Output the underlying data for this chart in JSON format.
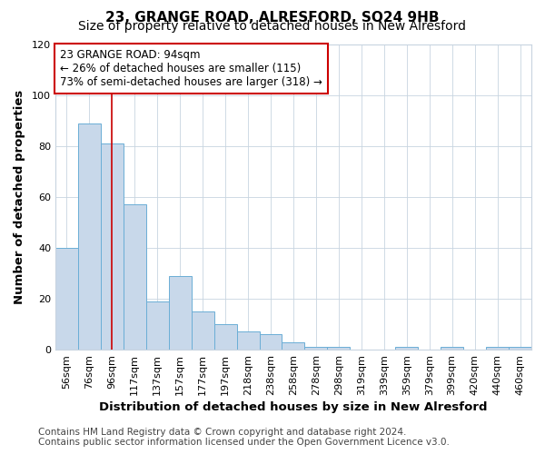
{
  "title": "23, GRANGE ROAD, ALRESFORD, SO24 9HB",
  "subtitle": "Size of property relative to detached houses in New Alresford",
  "xlabel": "Distribution of detached houses by size in New Alresford",
  "ylabel": "Number of detached properties",
  "bar_labels": [
    "56sqm",
    "76sqm",
    "96sqm",
    "117sqm",
    "137sqm",
    "157sqm",
    "177sqm",
    "197sqm",
    "218sqm",
    "238sqm",
    "258sqm",
    "278sqm",
    "298sqm",
    "319sqm",
    "339sqm",
    "359sqm",
    "379sqm",
    "399sqm",
    "420sqm",
    "440sqm",
    "460sqm"
  ],
  "bar_values": [
    40,
    89,
    81,
    57,
    19,
    29,
    15,
    10,
    7,
    6,
    3,
    1,
    1,
    0,
    0,
    1,
    0,
    1,
    0,
    1,
    1
  ],
  "bar_color": "#c8d8ea",
  "bar_edge_color": "#6baed6",
  "vline_x": 2,
  "vline_color": "#cc0000",
  "annotation_text": "23 GRANGE ROAD: 94sqm\n← 26% of detached houses are smaller (115)\n73% of semi-detached houses are larger (318) →",
  "annotation_box_color": "#ffffff",
  "annotation_box_edge": "#cc0000",
  "ylim": [
    0,
    120
  ],
  "yticks": [
    0,
    20,
    40,
    60,
    80,
    100,
    120
  ],
  "footer1": "Contains HM Land Registry data © Crown copyright and database right 2024.",
  "footer2": "Contains public sector information licensed under the Open Government Licence v3.0.",
  "background_color": "#ffffff",
  "plot_background": "#ffffff",
  "title_fontsize": 11,
  "subtitle_fontsize": 10,
  "axis_label_fontsize": 9.5,
  "tick_fontsize": 8,
  "footer_fontsize": 7.5
}
